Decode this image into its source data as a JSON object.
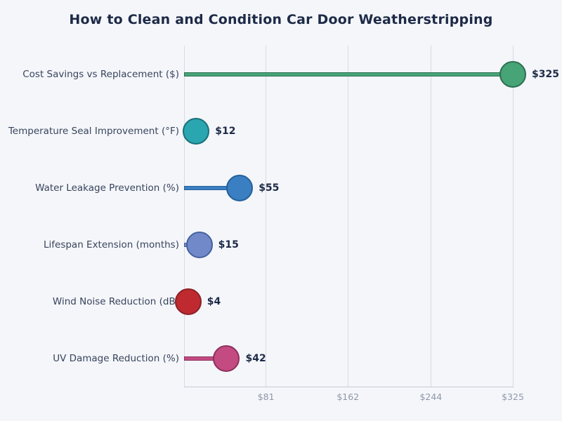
{
  "title": "How to Clean and Condition Car Door Weatherstripping",
  "colors": {
    "background": "#f4f6fa",
    "gridline": "#d7dae1",
    "axis_line": "#c6cad3",
    "title_text": "#1d2a47",
    "category_text": "#39445c",
    "value_text": "#1d2a47",
    "tick_text": "#8f97a8"
  },
  "chart_data": {
    "type": "bar",
    "variant": "lollipop",
    "orientation": "horizontal",
    "title": "How to Clean and Condition Car Door Weatherstripping",
    "categories": [
      "Cost Savings vs Replacement ($)",
      "Temperature Seal Improvement (°F)",
      "Water Leakage Prevention (%)",
      "Lifespan Extension (months)",
      "Wind Noise Reduction (dB)",
      "UV Damage Reduction (%)"
    ],
    "values": [
      325,
      12,
      55,
      15,
      4,
      42
    ],
    "value_labels": [
      "$325",
      "$12",
      "$55",
      "$15",
      "$4",
      "$42"
    ],
    "point_colors": [
      {
        "fill": "#46a477",
        "stroke": "#2e6f50"
      },
      {
        "fill": "#2aa6b0",
        "stroke": "#1a6f78"
      },
      {
        "fill": "#3a7fc1",
        "stroke": "#24609b"
      },
      {
        "fill": "#7189c8",
        "stroke": "#46619e"
      },
      {
        "fill": "#bf2a31",
        "stroke": "#8c2026"
      },
      {
        "fill": "#c34b82",
        "stroke": "#8f2f5d"
      }
    ],
    "xlim": [
      0,
      325
    ],
    "x_ticks": [
      {
        "value": 0,
        "label": ""
      },
      {
        "value": 81,
        "label": "$81"
      },
      {
        "value": 162,
        "label": "$162"
      },
      {
        "value": 244,
        "label": "$244"
      },
      {
        "value": 325,
        "label": "$325"
      }
    ],
    "xlabel": "",
    "ylabel": "",
    "grid": "vertical",
    "legend": "none"
  }
}
